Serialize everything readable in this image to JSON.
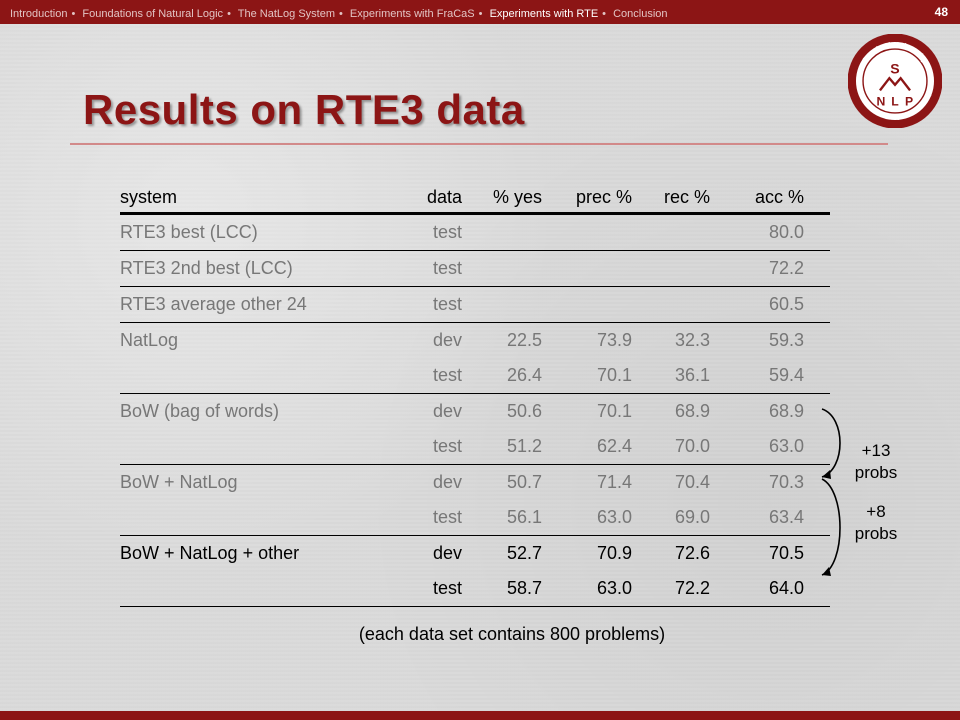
{
  "nav": {
    "items": [
      "Introduction",
      "Foundations of Natural Logic",
      "The NatLog System",
      "Experiments with FraCaS",
      "Experiments with RTE",
      "Conclusion"
    ],
    "active_index": 4,
    "separator": "•"
  },
  "slide_number": "48",
  "title": "Results on RTE3 data",
  "logo": {
    "ring_top": "Stanford University",
    "ring_bottom": "Natural Language Processing",
    "letters": [
      "S",
      "N",
      "L",
      "P"
    ],
    "color": "#8c1515"
  },
  "table": {
    "headers": [
      "system",
      "data",
      "% yes",
      "prec %",
      "rec %",
      "acc %"
    ],
    "rows": [
      {
        "system": "RTE3 best (LCC)",
        "data": "test",
        "yes": "",
        "prec": "",
        "rec": "",
        "acc": "80.0",
        "style": "grey"
      },
      {
        "system": "RTE3 2nd best (LCC)",
        "data": "test",
        "yes": "",
        "prec": "",
        "rec": "",
        "acc": "72.2",
        "style": "grey"
      },
      {
        "system": "RTE3 average other 24",
        "data": "test",
        "yes": "",
        "prec": "",
        "rec": "",
        "acc": "60.5",
        "style": "grey"
      },
      {
        "system": "NatLog",
        "data": "dev",
        "yes": "22.5",
        "prec": "73.9",
        "rec": "32.3",
        "acc": "59.3",
        "style": "grey"
      },
      {
        "system": "",
        "data": "test",
        "yes": "26.4",
        "prec": "70.1",
        "rec": "36.1",
        "acc": "59.4",
        "style": "grey"
      },
      {
        "system": "BoW (bag of words)",
        "data": "dev",
        "yes": "50.6",
        "prec": "70.1",
        "rec": "68.9",
        "acc": "68.9",
        "style": "grey"
      },
      {
        "system": "",
        "data": "test",
        "yes": "51.2",
        "prec": "62.4",
        "rec": "70.0",
        "acc": "63.0",
        "style": "grey"
      },
      {
        "system": "BoW + NatLog",
        "data": "dev",
        "yes": "50.7",
        "prec": "71.4",
        "rec": "70.4",
        "acc": "70.3",
        "style": "grey"
      },
      {
        "system": "",
        "data": "test",
        "yes": "56.1",
        "prec": "63.0",
        "rec": "69.0",
        "acc": "63.4",
        "style": "grey"
      },
      {
        "system": "BoW + NatLog + other",
        "data": "dev",
        "yes": "52.7",
        "prec": "70.9",
        "rec": "72.6",
        "acc": "70.5",
        "style": "black"
      },
      {
        "system": "",
        "data": "test",
        "yes": "58.7",
        "prec": "63.0",
        "rec": "72.2",
        "acc": "64.0",
        "style": "black"
      }
    ]
  },
  "note": "(each data set contains 800 problems)",
  "annotations": {
    "a13_line1": "+13",
    "a13_line2": "probs",
    "a8_line1": "+8",
    "a8_line2": "probs"
  },
  "colors": {
    "accent": "#8c1515",
    "background": "#dcdcdc",
    "grey_text": "#777777"
  }
}
